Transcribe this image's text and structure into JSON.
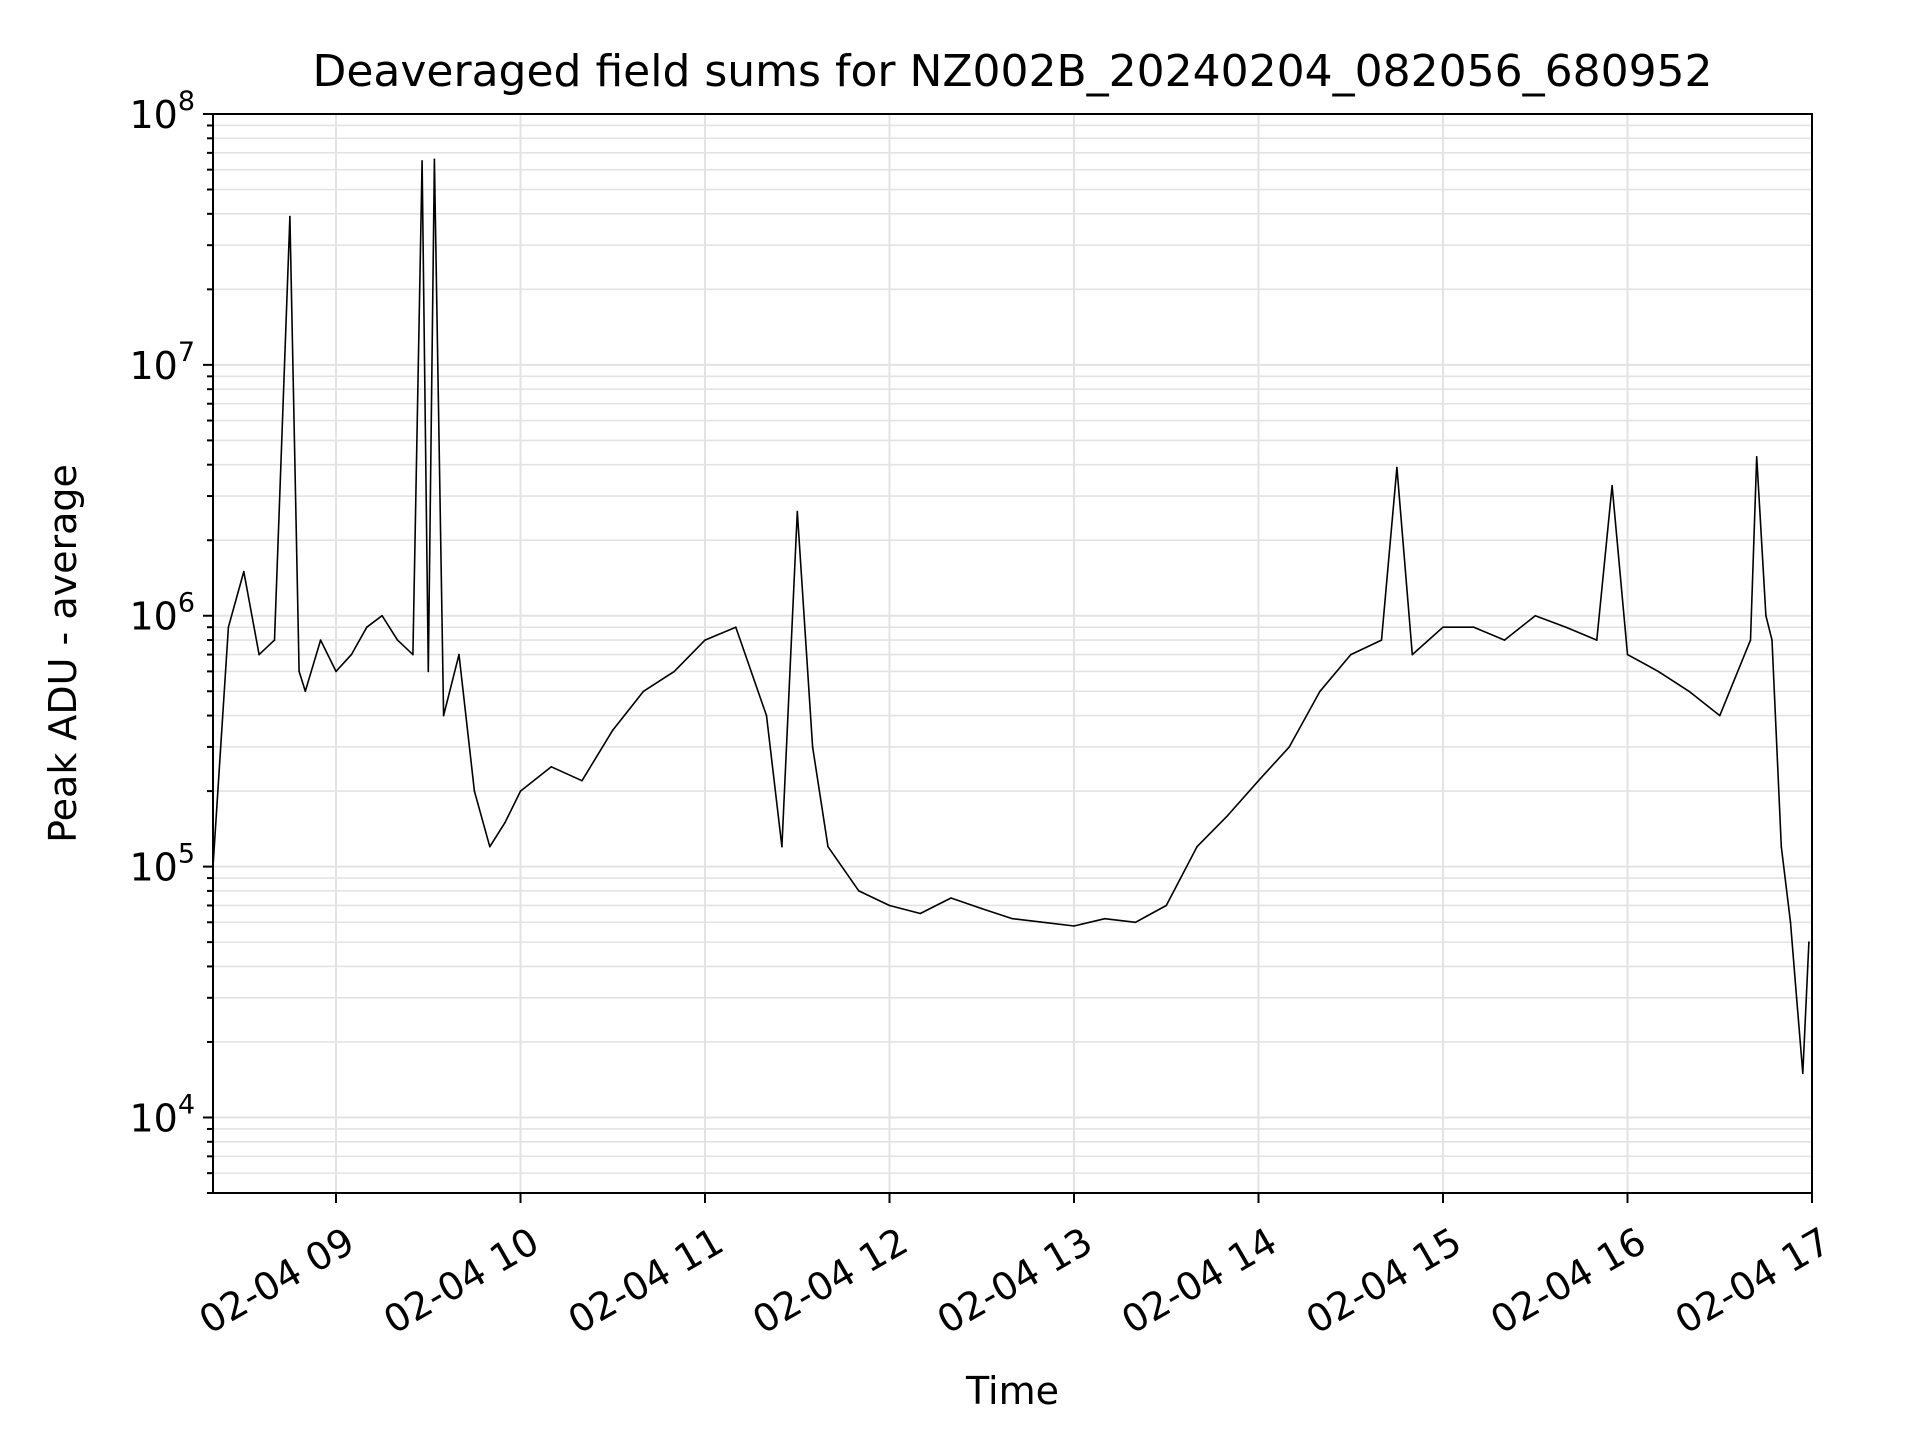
{
  "chart_data": {
    "type": "line",
    "title": "Deaveraged field sums for NZ002B_20240204_082056_680952",
    "xlabel": "Time",
    "ylabel": "Peak ADU - average",
    "yscale": "log",
    "ylim": [
      5000,
      100000000
    ],
    "xlim": [
      "02-04 08:20",
      "02-04 17:00"
    ],
    "grid": true,
    "grid_minor": true,
    "line_color": "#000000",
    "x_ticks": [
      {
        "label": "02-04 09",
        "time": "09:00"
      },
      {
        "label": "02-04 10",
        "time": "10:00"
      },
      {
        "label": "02-04 11",
        "time": "11:00"
      },
      {
        "label": "02-04 12",
        "time": "12:00"
      },
      {
        "label": "02-04 13",
        "time": "13:00"
      },
      {
        "label": "02-04 14",
        "time": "14:00"
      },
      {
        "label": "02-04 15",
        "time": "15:00"
      },
      {
        "label": "02-04 16",
        "time": "16:00"
      },
      {
        "label": "02-04 17",
        "time": "17:00"
      }
    ],
    "y_ticks": [
      {
        "base": "10",
        "exp": "4",
        "value": 10000
      },
      {
        "base": "10",
        "exp": "5",
        "value": 100000
      },
      {
        "base": "10",
        "exp": "6",
        "value": 1000000
      },
      {
        "base": "10",
        "exp": "7",
        "value": 10000000
      },
      {
        "base": "10",
        "exp": "8",
        "value": 100000000
      }
    ],
    "series": [
      {
        "x": [
          "08:20",
          "08:25",
          "08:30",
          "08:35",
          "08:40",
          "08:45",
          "08:48",
          "08:50",
          "08:55",
          "09:00",
          "09:05",
          "09:10",
          "09:15",
          "09:20",
          "09:25",
          "09:28",
          "09:30",
          "09:32",
          "09:35",
          "09:40",
          "09:45",
          "09:50",
          "09:55",
          "10:00",
          "10:10",
          "10:20",
          "10:30",
          "10:40",
          "10:50",
          "11:00",
          "11:10",
          "11:20",
          "11:25",
          "11:30",
          "11:35",
          "11:40",
          "11:50",
          "12:00",
          "12:10",
          "12:20",
          "12:30",
          "12:40",
          "12:50",
          "13:00",
          "13:10",
          "13:20",
          "13:30",
          "13:40",
          "13:50",
          "14:00",
          "14:10",
          "14:20",
          "14:30",
          "14:40",
          "14:45",
          "14:50",
          "15:00",
          "15:10",
          "15:20",
          "15:30",
          "15:40",
          "15:50",
          "15:55",
          "16:00",
          "16:10",
          "16:20",
          "16:30",
          "16:40",
          "16:42",
          "16:45",
          "16:47",
          "16:50",
          "16:53",
          "16:55",
          "16:57",
          "16:59"
        ],
        "y": [
          100000,
          900000,
          1500000,
          700000,
          800000,
          39000000,
          600000,
          500000,
          800000,
          600000,
          700000,
          900000,
          1000000,
          800000,
          700000,
          65000000,
          600000,
          66000000,
          400000,
          700000,
          200000,
          120000,
          150000,
          200000,
          250000,
          220000,
          350000,
          500000,
          600000,
          800000,
          900000,
          400000,
          120000,
          2600000,
          300000,
          120000,
          80000,
          70000,
          65000,
          75000,
          68000,
          62000,
          60000,
          58000,
          62000,
          60000,
          70000,
          120000,
          160000,
          220000,
          300000,
          500000,
          700000,
          800000,
          3900000,
          700000,
          900000,
          900000,
          800000,
          1000000,
          900000,
          800000,
          3300000,
          700000,
          600000,
          500000,
          400000,
          800000,
          4300000,
          1000000,
          800000,
          120000,
          60000,
          30000,
          15000,
          50000
        ]
      }
    ]
  }
}
